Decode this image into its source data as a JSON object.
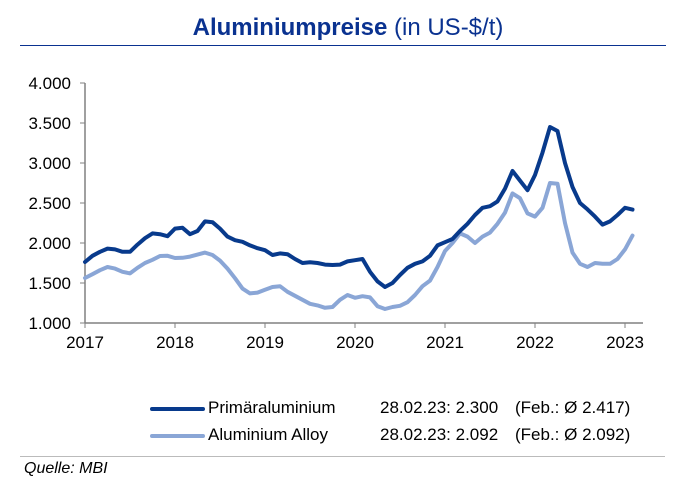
{
  "title": {
    "bold": "Aluminiumpreise",
    "normal": " (in US-$/t)"
  },
  "source": "Quelle: MBI",
  "legend": [
    {
      "name": "Primäraluminium",
      "value": "28.02.23: 2.300",
      "avg": "(Feb.: Ø 2.417)",
      "color": "#083a8c"
    },
    {
      "name": "Aluminium Alloy",
      "value": "28.02.23: 2.092",
      "avg": "(Feb.: Ø 2.092)",
      "color": "#8aa6d6"
    }
  ],
  "chart_data": {
    "type": "line",
    "title": "Aluminiumpreise (in US-$/t)",
    "ylim": [
      1000,
      4000
    ],
    "y_ticks": [
      "1.000",
      "1.500",
      "2.000",
      "2.500",
      "3.000",
      "3.500",
      "4.000"
    ],
    "y_tick_values": [
      1000,
      1500,
      2000,
      2500,
      3000,
      3500,
      4000
    ],
    "x_ticks": [
      "2017",
      "2018",
      "2019",
      "2020",
      "2021",
      "2022",
      "2023"
    ],
    "grid": false,
    "legend_position": "bottom",
    "x": [
      "2017-01",
      "2017-02",
      "2017-03",
      "2017-04",
      "2017-05",
      "2017-06",
      "2017-07",
      "2017-08",
      "2017-09",
      "2017-10",
      "2017-11",
      "2017-12",
      "2018-01",
      "2018-02",
      "2018-03",
      "2018-04",
      "2018-05",
      "2018-06",
      "2018-07",
      "2018-08",
      "2018-09",
      "2018-10",
      "2018-11",
      "2018-12",
      "2019-01",
      "2019-02",
      "2019-03",
      "2019-04",
      "2019-05",
      "2019-06",
      "2019-07",
      "2019-08",
      "2019-09",
      "2019-10",
      "2019-11",
      "2019-12",
      "2020-01",
      "2020-02",
      "2020-03",
      "2020-04",
      "2020-05",
      "2020-06",
      "2020-07",
      "2020-08",
      "2020-09",
      "2020-10",
      "2020-11",
      "2020-12",
      "2021-01",
      "2021-02",
      "2021-03",
      "2021-04",
      "2021-05",
      "2021-06",
      "2021-07",
      "2021-08",
      "2021-09",
      "2021-10",
      "2021-11",
      "2021-12",
      "2022-01",
      "2022-02",
      "2022-03",
      "2022-04",
      "2022-05",
      "2022-06",
      "2022-07",
      "2022-08",
      "2022-09",
      "2022-10",
      "2022-11",
      "2022-12",
      "2023-01",
      "2023-02"
    ],
    "series": [
      {
        "name": "Primäraluminium",
        "color": "#083a8c",
        "values": [
          1762,
          1840,
          1890,
          1930,
          1920,
          1890,
          1890,
          1980,
          2060,
          2120,
          2110,
          2085,
          2180,
          2190,
          2110,
          2150,
          2270,
          2260,
          2180,
          2080,
          2035,
          2015,
          1970,
          1935,
          1910,
          1850,
          1870,
          1860,
          1800,
          1750,
          1760,
          1750,
          1730,
          1725,
          1730,
          1770,
          1785,
          1800,
          1640,
          1520,
          1450,
          1500,
          1600,
          1690,
          1740,
          1770,
          1840,
          1970,
          2010,
          2050,
          2150,
          2240,
          2350,
          2440,
          2460,
          2520,
          2680,
          2900,
          2780,
          2660,
          2850,
          3130,
          3450,
          3400,
          3000,
          2700,
          2500,
          2420,
          2330,
          2230,
          2270,
          2350,
          2440,
          2417
        ]
      },
      {
        "name": "Aluminium Alloy",
        "color": "#8aa6d6",
        "values": [
          1562,
          1610,
          1660,
          1700,
          1680,
          1640,
          1620,
          1690,
          1750,
          1790,
          1837,
          1840,
          1812,
          1815,
          1830,
          1855,
          1880,
          1850,
          1780,
          1680,
          1560,
          1430,
          1370,
          1380,
          1415,
          1450,
          1460,
          1390,
          1340,
          1290,
          1240,
          1220,
          1190,
          1200,
          1290,
          1350,
          1315,
          1335,
          1320,
          1210,
          1175,
          1200,
          1215,
          1260,
          1350,
          1460,
          1530,
          1700,
          1900,
          2000,
          2120,
          2080,
          2000,
          2080,
          2130,
          2240,
          2380,
          2620,
          2560,
          2370,
          2330,
          2440,
          2750,
          2740,
          2250,
          1880,
          1740,
          1700,
          1750,
          1740,
          1740,
          1800,
          1920,
          2092
        ]
      }
    ]
  }
}
